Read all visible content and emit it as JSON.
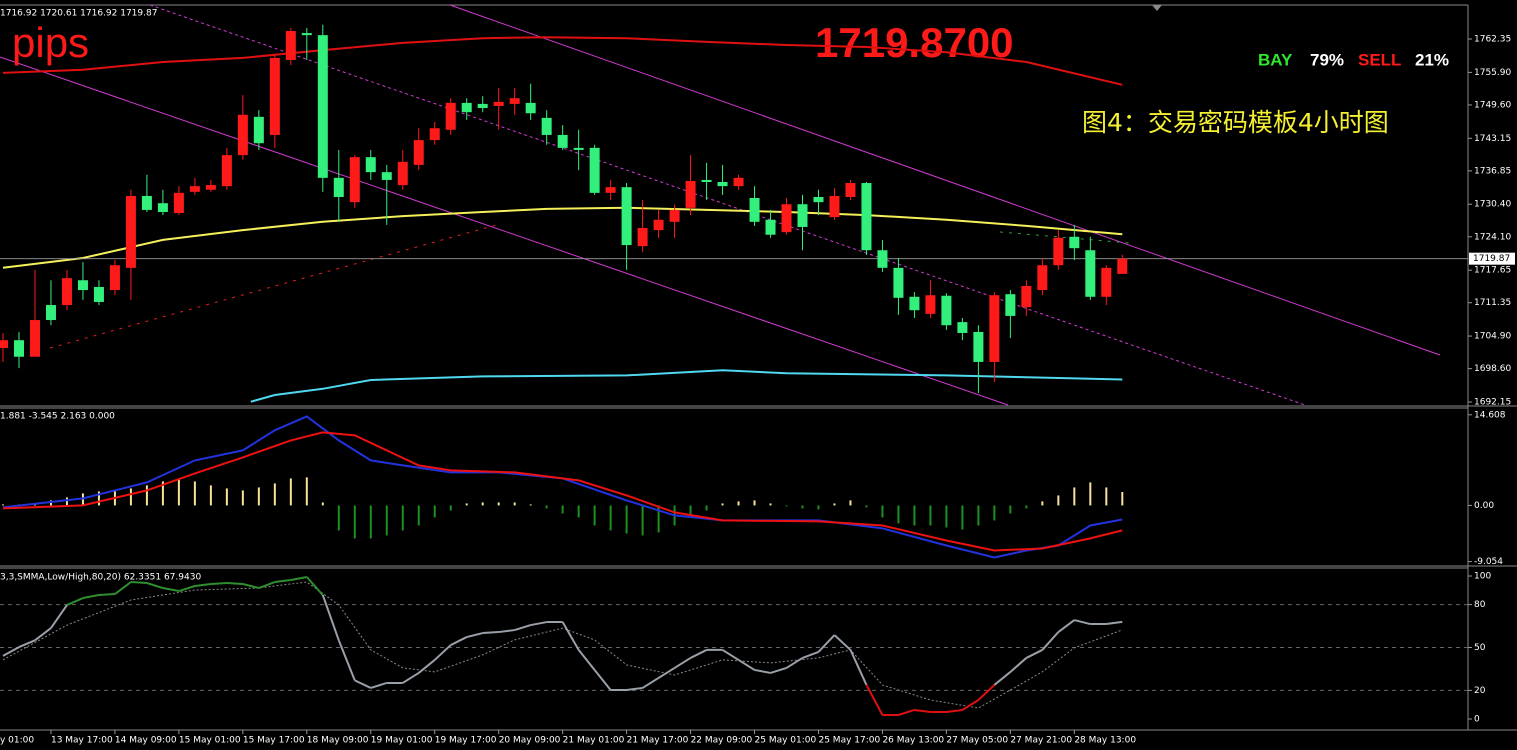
{
  "header": {
    "ohlc_text": "1716.92 1720.61 1716.92 1719.87",
    "pips": "pips",
    "price": "1719.8700",
    "buy_label": "BAY",
    "buy_pct": "79%",
    "sell_label": "SELL",
    "sell_pct": "21%",
    "caption": "图4：交易密码模板4小时图"
  },
  "chart_data": [
    {
      "type": "candlestick",
      "first_x_label": "y 01:00",
      "categories": [
        null,
        null,
        null,
        "13 May 17:00",
        null,
        null,
        null,
        "14 May 09:00",
        null,
        null,
        null,
        "15 May 01:00",
        null,
        null,
        null,
        "15 May 17:00",
        null,
        null,
        null,
        "18 May 09:00",
        null,
        null,
        null,
        "19 May 01:00",
        null,
        null,
        null,
        "19 May 17:00",
        null,
        null,
        null,
        "20 May 09:00",
        null,
        null,
        null,
        "21 May 01:00",
        null,
        null,
        null,
        "21 May 17:00",
        null,
        null,
        null,
        "22 May 09:00",
        null,
        null,
        null,
        "25 May 01:00",
        null,
        null,
        null,
        "25 May 17:00",
        null,
        null,
        null,
        "26 May 13:00",
        null,
        null,
        null,
        "27 May 05:00",
        null,
        null,
        null,
        "27 May 21:00",
        null,
        null,
        null,
        "28 May 13:00",
        null,
        null,
        null
      ],
      "open": [
        1702.6,
        1704.1,
        1700.9,
        1710.9,
        1710.9,
        1715.7,
        1714.4,
        1713.8,
        1718.1,
        1732.0,
        1730.6,
        1728.7,
        1732.8,
        1733.2,
        1733.9,
        1739.9,
        1747.3,
        1743.8,
        1758.3,
        1763.5,
        1763.1,
        1735.5,
        1730.8,
        1739.5,
        1736.6,
        1734.1,
        1738.0,
        1742.8,
        1744.8,
        1750.0,
        1749.8,
        1749.4,
        1749.8,
        1750.0,
        1747.1,
        1743.8,
        1741.3,
        1741.3,
        1732.6,
        1733.7,
        1722.3,
        1725.4,
        1727.0,
        1729.7,
        1735.1,
        1734.7,
        1733.9,
        1731.6,
        1727.4,
        1725.0,
        1730.4,
        1731.8,
        1727.9,
        1731.8,
        1734.5,
        1721.5,
        1718.1,
        1712.5,
        1709.2,
        1712.7,
        1707.6,
        1705.7,
        1699.9,
        1713.0,
        1710.5,
        1713.8,
        1718.6,
        1724.1,
        1721.5,
        1712.5,
        1716.92
      ],
      "high": [
        1705.5,
        1705.7,
        1717.7,
        1715.7,
        1717.7,
        1719.2,
        1715.7,
        1719.6,
        1733.2,
        1736.1,
        1733.2,
        1733.9,
        1735.5,
        1735.1,
        1741.3,
        1751.5,
        1748.6,
        1759.3,
        1764.5,
        1764.5,
        1765.1,
        1740.9,
        1739.9,
        1740.9,
        1738.0,
        1740.9,
        1745.1,
        1746.3,
        1750.9,
        1750.9,
        1751.3,
        1752.9,
        1752.9,
        1753.7,
        1748.6,
        1745.7,
        1744.8,
        1741.9,
        1735.1,
        1734.5,
        1731.2,
        1729.3,
        1730.3,
        1739.9,
        1738.4,
        1738.0,
        1736.1,
        1733.9,
        1729.3,
        1731.6,
        1732.2,
        1733.2,
        1733.5,
        1735.1,
        1734.7,
        1723.5,
        1720.0,
        1713.4,
        1715.7,
        1713.2,
        1708.4,
        1707.0,
        1713.4,
        1713.8,
        1715.7,
        1720.0,
        1725.4,
        1726.4,
        1724.1,
        1718.6,
        1720.61
      ],
      "low": [
        1699.9,
        1698.7,
        1700.9,
        1707.0,
        1709.9,
        1711.9,
        1710.9,
        1712.8,
        1711.9,
        1728.9,
        1728.3,
        1728.3,
        1732.2,
        1732.8,
        1733.2,
        1739.0,
        1740.9,
        1741.3,
        1757.3,
        1758.3,
        1732.8,
        1727.0,
        1729.7,
        1735.1,
        1726.4,
        1733.2,
        1737.0,
        1741.9,
        1743.8,
        1746.7,
        1748.2,
        1744.8,
        1747.7,
        1746.7,
        1741.9,
        1740.9,
        1737.0,
        1732.2,
        1731.2,
        1717.7,
        1721.2,
        1723.9,
        1723.9,
        1728.3,
        1731.2,
        1732.2,
        1733.2,
        1726.2,
        1723.9,
        1724.5,
        1721.5,
        1728.3,
        1727.4,
        1731.2,
        1720.6,
        1717.3,
        1709.0,
        1708.4,
        1708.4,
        1706.1,
        1704.1,
        1693.9,
        1696.0,
        1704.5,
        1708.8,
        1712.8,
        1717.7,
        1719.6,
        1711.9,
        1710.9,
        1716.92
      ],
      "close": [
        1704.1,
        1700.9,
        1708.0,
        1708.0,
        1716.1,
        1713.8,
        1711.5,
        1718.6,
        1732.0,
        1729.3,
        1728.9,
        1732.6,
        1733.9,
        1734.1,
        1739.9,
        1747.7,
        1742.2,
        1758.7,
        1763.9,
        1763.1,
        1735.5,
        1731.8,
        1739.5,
        1736.6,
        1735.1,
        1738.6,
        1742.8,
        1745.1,
        1750.0,
        1748.2,
        1749.0,
        1750.2,
        1750.9,
        1748.0,
        1743.8,
        1741.3,
        1740.9,
        1732.6,
        1733.7,
        1722.5,
        1725.8,
        1727.4,
        1729.3,
        1734.9,
        1734.7,
        1733.9,
        1735.5,
        1727.0,
        1724.5,
        1730.4,
        1726.0,
        1730.8,
        1732.0,
        1734.5,
        1721.5,
        1718.1,
        1712.3,
        1709.9,
        1712.8,
        1707.0,
        1705.5,
        1699.9,
        1712.8,
        1708.8,
        1714.6,
        1718.6,
        1723.9,
        1721.9,
        1712.5,
        1718.1,
        1719.87
      ],
      "up_color": "#ff1a1a",
      "down_color": "#33f07c",
      "ylim": [
        1691.57,
        1768.93
      ],
      "yticks": [
        1762.35,
        {
          "value": 1755.9,
          "label": "1755.90"
        },
        {
          "value": 1749.6,
          "label": "1749.60"
        },
        1743.15,
        1736.85,
        {
          "value": 1730.4,
          "label": "1730.40"
        },
        {
          "value": 1724.1,
          "label": "1724.10"
        },
        1717.65,
        1711.35,
        {
          "value": 1704.9,
          "label": "1704.90"
        },
        {
          "value": 1698.6,
          "label": "1698.60"
        },
        1692.15
      ],
      "last_price": {
        "value": 1719.87,
        "label": "1719.87"
      },
      "overlays": [
        {
          "color": "#e01010",
          "x": [
            0,
            5,
            10,
            15,
            20,
            25,
            30,
            34,
            39,
            44,
            49,
            54,
            59,
            64,
            70
          ],
          "values": [
            1755.8,
            1756.4,
            1757.9,
            1758.7,
            1760.2,
            1761.6,
            1762.5,
            1762.7,
            1762.5,
            1761.8,
            1761.2,
            1760.8,
            1759.8,
            1757.9,
            1753.5
          ]
        },
        {
          "color": "#f5f05a",
          "x": [
            0,
            5,
            10,
            15,
            20,
            25,
            30,
            34,
            39,
            44,
            49,
            54,
            59,
            64,
            70
          ],
          "values": [
            1718.1,
            1720.0,
            1723.5,
            1725.4,
            1727.0,
            1728.1,
            1728.9,
            1729.5,
            1729.7,
            1729.3,
            1728.9,
            1728.3,
            1727.4,
            1726.2,
            1724.6
          ]
        },
        {
          "color": "#4fd8f0",
          "x": [
            15.5,
            17,
            20,
            23,
            30,
            39,
            45,
            49,
            59,
            70
          ],
          "values": [
            1692.2,
            1693.5,
            1694.7,
            1696.4,
            1697.1,
            1697.3,
            1698.3,
            1697.7,
            1697.3,
            1696.5
          ]
        }
      ]
    },
    {
      "type": "macd",
      "legend_text": "1.881 -3.545 2.163 0.000",
      "values": [
        0.16,
        0.16,
        0.32,
        0.81,
        1.29,
        1.94,
        2.26,
        2.42,
        2.74,
        3.23,
        3.87,
        4.19,
        3.87,
        3.23,
        2.74,
        2.42,
        2.9,
        3.55,
        4.35,
        4.52,
        0.48,
        -4.03,
        -5.32,
        -5.32,
        -4.84,
        -4.03,
        -3.23,
        -1.94,
        -0.81,
        0.32,
        0.48,
        0.48,
        0.48,
        0.16,
        -0.48,
        -1.29,
        -1.94,
        -3.23,
        -4.03,
        -4.52,
        -4.84,
        -4.35,
        -3.23,
        -1.94,
        -0.81,
        0.32,
        0.65,
        0.81,
        0.32,
        -0.16,
        -0.48,
        -0.65,
        0.32,
        0.81,
        -0.32,
        -1.94,
        -2.9,
        -3.23,
        -3.23,
        -3.55,
        -3.87,
        -3.23,
        -2.42,
        -1.29,
        -0.48,
        0.65,
        1.61,
        2.9,
        3.71,
        2.9,
        2.16
      ],
      "positive_color": "#f7e39c",
      "negative_color": "#1f8f1f",
      "lines": [
        {
          "color": "#2233dd",
          "x": [
            0,
            5,
            9,
            12,
            15,
            17,
            19,
            21,
            23,
            25,
            28,
            31,
            35,
            39,
            42,
            45,
            51,
            55,
            59,
            62,
            64,
            66,
            68,
            70
          ],
          "values": [
            -0.32,
            1.13,
            3.71,
            7.26,
            8.87,
            12.1,
            14.35,
            10.48,
            7.26,
            6.45,
            5.32,
            5.32,
            4.35,
            0.81,
            -1.61,
            -2.42,
            -2.42,
            -3.71,
            -6.45,
            -8.39,
            -7.26,
            -6.45,
            -3.23,
            -2.26
          ]
        },
        {
          "color": "#ee1111",
          "x": [
            0,
            5,
            9,
            12,
            15,
            18,
            20,
            22,
            24,
            26,
            28,
            32,
            36,
            39,
            42,
            45,
            51,
            55,
            59,
            62,
            65,
            68,
            70
          ],
          "values": [
            -0.48,
            0,
            2.42,
            5.16,
            7.74,
            10.48,
            11.77,
            11.29,
            8.87,
            6.45,
            5.65,
            5.32,
            4.03,
            1.61,
            -1.13,
            -2.42,
            -2.58,
            -3.23,
            -5.65,
            -7.26,
            -6.94,
            -5.32,
            -4.03
          ]
        }
      ],
      "ylim": [
        -9.6,
        15.7
      ],
      "yticks": [
        14.608,
        {
          "value": 0,
          "label": "0.00"
        },
        -9.054
      ]
    },
    {
      "type": "oscillator",
      "legend_text": "3,3,SMMA,Low/High,80,20) 62.3351 67.9430",
      "values": [
        44.1,
        50.3,
        55,
        63.6,
        79.7,
        84.6,
        86.7,
        87.4,
        95.8,
        95.1,
        91.6,
        89.5,
        93,
        94.4,
        95.1,
        94.4,
        91.6,
        95.8,
        97.2,
        99.3,
        86.7,
        55,
        27,
        21.7,
        25.2,
        25.2,
        32.2,
        41.3,
        51.7,
        57.3,
        60.1,
        60.8,
        62.2,
        65.7,
        67.8,
        67.8,
        48.3,
        34.3,
        20.3,
        20.3,
        21.7,
        28.7,
        35.7,
        42.7,
        48.3,
        48.3,
        41.3,
        34.3,
        32.2,
        35.7,
        42.7,
        46.9,
        58.7,
        48.3,
        23.8,
        2.8,
        2.8,
        6.3,
        4.9,
        4.9,
        6.3,
        13.3,
        23.8,
        32.9,
        42.7,
        48.3,
        60.8,
        69.2,
        66.4,
        66.4,
        67.9
      ],
      "color": "#9aa0a8",
      "overbought": 80,
      "oversold": 20,
      "overbought_color": "#2f8f2f",
      "oversold_color": "#e01010",
      "signal": {
        "color": "#8a8a8a",
        "x": [
          0,
          4,
          8,
          12,
          16,
          19,
          21,
          23,
          25,
          27,
          30,
          32,
          35,
          37,
          39,
          42,
          45,
          48,
          51,
          53,
          55,
          58,
          61,
          63,
          65,
          67,
          70
        ],
        "values": [
          41.3,
          65.7,
          83.2,
          90.2,
          91.6,
          95.8,
          79.7,
          48.3,
          35.7,
          32.9,
          44.8,
          55.3,
          63.6,
          55.3,
          37.8,
          30.8,
          41.3,
          39.2,
          42.7,
          48.3,
          23.8,
          13.3,
          7.7,
          20.3,
          32.9,
          49.7,
          62.3
        ]
      },
      "ylim": [
        -7.7,
        105.6
      ],
      "yticks": [
        100,
        80,
        50,
        20,
        0
      ]
    }
  ]
}
